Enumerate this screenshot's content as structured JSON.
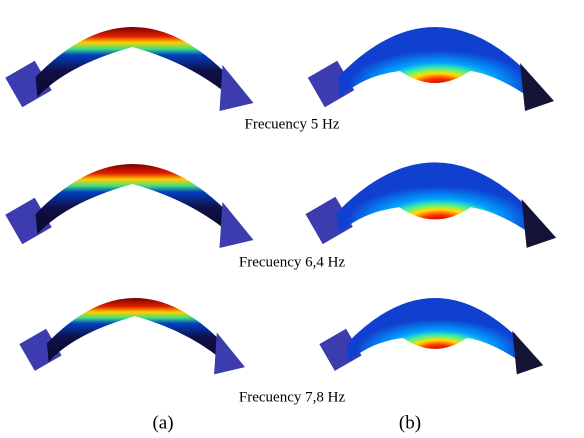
{
  "captions": [
    "Frecuency 5 Hz",
    "Frecuency 6,4 Hz",
    "Frecuency 7,8 Hz"
  ],
  "columns": [
    "(a)",
    "(b)"
  ]
}
